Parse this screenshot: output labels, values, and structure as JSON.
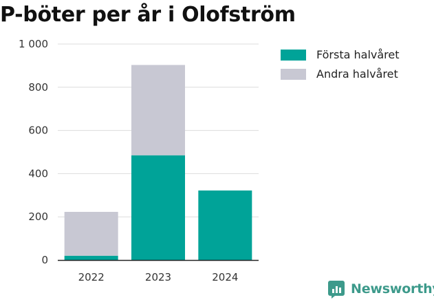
{
  "chart_data": {
    "type": "bar",
    "stacked": true,
    "title": "P-böter per år i Olofström",
    "categories": [
      "2022",
      "2023",
      "2024"
    ],
    "series": [
      {
        "name": "Första halvåret",
        "color": "#00a398",
        "values": [
          20,
          485,
          322
        ]
      },
      {
        "name": "Andra halvåret",
        "color": "#c8c8d3",
        "values": [
          203,
          418,
          0
        ]
      }
    ],
    "ylim": [
      0,
      1000
    ],
    "yticks": [
      0,
      200,
      400,
      600,
      800,
      1000
    ],
    "ytick_labels": [
      "0",
      "200",
      "400",
      "600",
      "800",
      "1 000"
    ],
    "grid": true,
    "legend_position": "top-right"
  },
  "brand": {
    "name": "Newsworthy",
    "color": "#3d9a8b",
    "icon": "newsworthy-logo-icon"
  }
}
